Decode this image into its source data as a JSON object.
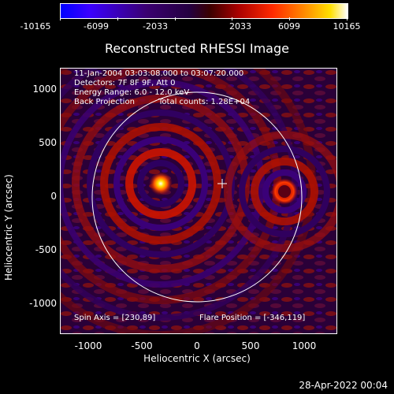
{
  "colorbar": {
    "ticks": [
      "-10165",
      "-6099",
      "-2033",
      "2033",
      "6099",
      "10165"
    ]
  },
  "title": "Reconstructed RHESSI Image",
  "annotations": {
    "time_range": "11-Jan-2004 03:03:08.000 to 03:07:20.000",
    "detectors": "Detectors: 7F 8F 9F, Att 0",
    "energy_range": "Energy Range: 6.0 - 12.0 keV",
    "method": "Back Projection",
    "total_counts": "Total counts: 1.28E+04",
    "spin_axis": "Spin Axis = [230,89]",
    "flare_position": "Flare Position = [-346,119]"
  },
  "axes": {
    "xlabel": "Heliocentric X (arcsec)",
    "ylabel": "Heliocentric Y (arcsec)",
    "xticks": [
      "-1000",
      "-500",
      "0",
      "500",
      "1000"
    ],
    "yticks": [
      "1000",
      "500",
      "0",
      "-500",
      "-1000"
    ]
  },
  "footer_date": "28-Apr-2022 00:04"
}
